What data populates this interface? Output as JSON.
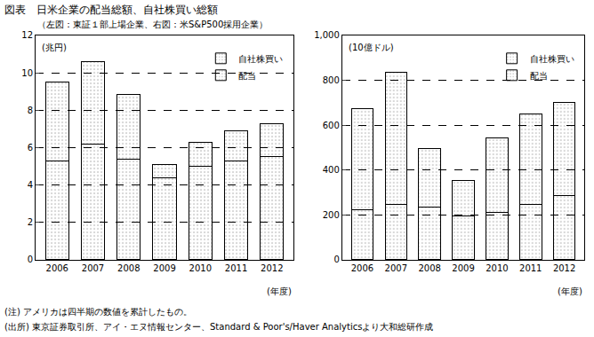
{
  "title": "図表　日米企業の配当総額、自社株買い総額",
  "subtitle": "（左図：東証１部上場企業、右図：米S&P500採用企業）",
  "notes": [
    "(注) アメリカは四半期の数値を累計したもの。",
    "(出所) 東京証券取引所、アイ・エヌ情報センター、Standard & Poor's/Haver Analyticsより大和総研作成"
  ],
  "chart_data": [
    {
      "type": "bar",
      "stacked": true,
      "grid": true,
      "legend": "upper right",
      "y_label": "(兆円)",
      "x_label": "(年度)",
      "categories": [
        "2006",
        "2007",
        "2008",
        "2009",
        "2010",
        "2011",
        "2012"
      ],
      "series": [
        {
          "name": "配当",
          "color": "#a9d3f7",
          "values": [
            5.3,
            6.2,
            5.4,
            4.4,
            5.0,
            5.3,
            5.5
          ]
        },
        {
          "name": "自社株買い",
          "color": "#f08a8a",
          "values": [
            4.2,
            4.4,
            3.45,
            0.7,
            1.3,
            1.6,
            1.8
          ]
        }
      ],
      "ylim": [
        0,
        12
      ],
      "yticks": [
        0,
        2,
        4,
        6,
        8,
        10,
        12
      ]
    },
    {
      "type": "bar",
      "stacked": true,
      "grid": true,
      "legend": "upper right",
      "y_label": "(10億ドル)",
      "x_label": "(年度)",
      "categories": [
        "2006",
        "2007",
        "2008",
        "2009",
        "2010",
        "2011",
        "2012"
      ],
      "series": [
        {
          "name": "配当",
          "color": "#a9d3f7",
          "values": [
            225,
            245,
            235,
            195,
            210,
            245,
            285
          ]
        },
        {
          "name": "自社株買い",
          "color": "#f08a8a",
          "values": [
            450,
            590,
            260,
            160,
            335,
            405,
            415
          ]
        }
      ],
      "ylim": [
        0,
        1000
      ],
      "yticks": [
        0,
        200,
        400,
        600,
        800,
        {
          "value": 1000,
          "label": "1,000"
        }
      ]
    }
  ]
}
